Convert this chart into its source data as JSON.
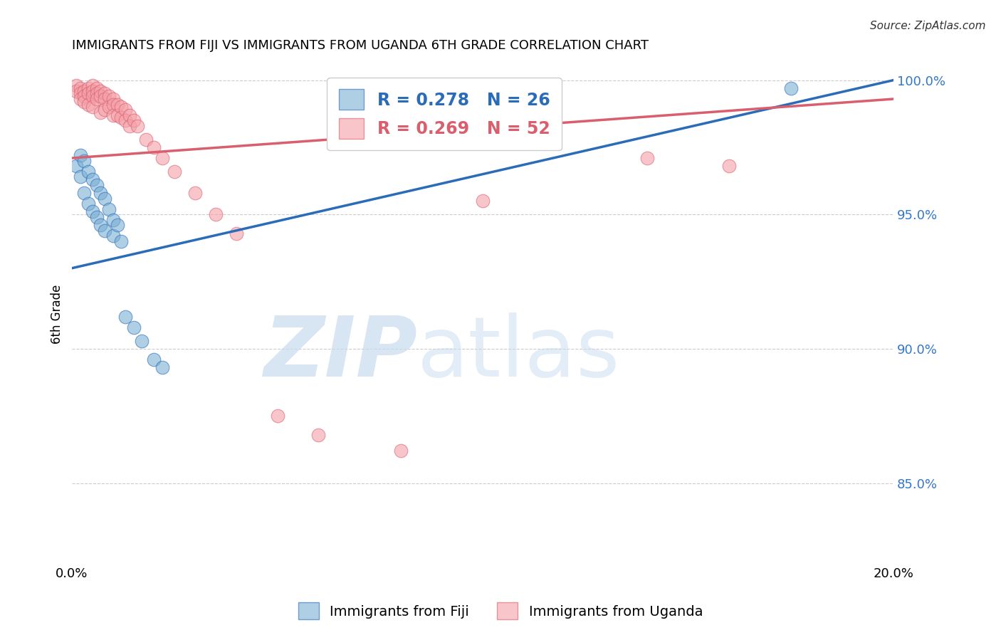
{
  "title": "IMMIGRANTS FROM FIJI VS IMMIGRANTS FROM UGANDA 6TH GRADE CORRELATION CHART",
  "source": "Source: ZipAtlas.com",
  "ylabel": "6th Grade",
  "xlim": [
    0.0,
    0.2
  ],
  "ylim": [
    0.82,
    1.006
  ],
  "xticks": [
    0.0,
    0.04,
    0.08,
    0.12,
    0.16,
    0.2
  ],
  "xticklabels": [
    "0.0%",
    "",
    "",
    "",
    "",
    "20.0%"
  ],
  "yticks_right": [
    0.85,
    0.9,
    0.95,
    1.0
  ],
  "ytick_right_labels": [
    "85.0%",
    "90.0%",
    "95.0%",
    "100.0%"
  ],
  "fiji_color": "#7BAFD4",
  "uganda_color": "#F4A0A8",
  "fiji_line_color": "#2B6CB8",
  "uganda_line_color": "#D95F6E",
  "fiji_R": 0.278,
  "fiji_N": 26,
  "uganda_R": 0.269,
  "uganda_N": 52,
  "fiji_scatter_x": [
    0.001,
    0.002,
    0.002,
    0.003,
    0.003,
    0.004,
    0.004,
    0.005,
    0.005,
    0.006,
    0.006,
    0.007,
    0.007,
    0.008,
    0.008,
    0.009,
    0.01,
    0.01,
    0.011,
    0.012,
    0.013,
    0.015,
    0.017,
    0.02,
    0.022,
    0.175
  ],
  "fiji_scatter_y": [
    0.968,
    0.972,
    0.964,
    0.97,
    0.958,
    0.966,
    0.954,
    0.963,
    0.951,
    0.961,
    0.949,
    0.958,
    0.946,
    0.956,
    0.944,
    0.952,
    0.948,
    0.942,
    0.946,
    0.94,
    0.912,
    0.908,
    0.903,
    0.896,
    0.893,
    0.997
  ],
  "uganda_scatter_x": [
    0.001,
    0.001,
    0.002,
    0.002,
    0.002,
    0.003,
    0.003,
    0.003,
    0.004,
    0.004,
    0.004,
    0.005,
    0.005,
    0.005,
    0.005,
    0.006,
    0.006,
    0.006,
    0.007,
    0.007,
    0.007,
    0.008,
    0.008,
    0.008,
    0.009,
    0.009,
    0.01,
    0.01,
    0.01,
    0.011,
    0.011,
    0.012,
    0.012,
    0.013,
    0.013,
    0.014,
    0.014,
    0.015,
    0.016,
    0.018,
    0.02,
    0.022,
    0.025,
    0.03,
    0.035,
    0.04,
    0.05,
    0.06,
    0.08,
    0.1,
    0.14,
    0.16
  ],
  "uganda_scatter_y": [
    0.998,
    0.996,
    0.997,
    0.995,
    0.993,
    0.996,
    0.994,
    0.992,
    0.997,
    0.995,
    0.991,
    0.998,
    0.996,
    0.994,
    0.99,
    0.997,
    0.995,
    0.993,
    0.996,
    0.994,
    0.988,
    0.995,
    0.993,
    0.989,
    0.994,
    0.99,
    0.993,
    0.991,
    0.987,
    0.991,
    0.987,
    0.99,
    0.986,
    0.989,
    0.985,
    0.987,
    0.983,
    0.985,
    0.983,
    0.978,
    0.975,
    0.971,
    0.966,
    0.958,
    0.95,
    0.943,
    0.875,
    0.868,
    0.862,
    0.955,
    0.971,
    0.968
  ],
  "fiji_trend_x0": 0.0,
  "fiji_trend_x1": 0.2,
  "fiji_trend_y0": 0.93,
  "fiji_trend_y1": 1.0,
  "uganda_trend_x0": 0.0,
  "uganda_trend_x1": 0.2,
  "uganda_trend_y0": 0.971,
  "uganda_trend_y1": 0.993
}
